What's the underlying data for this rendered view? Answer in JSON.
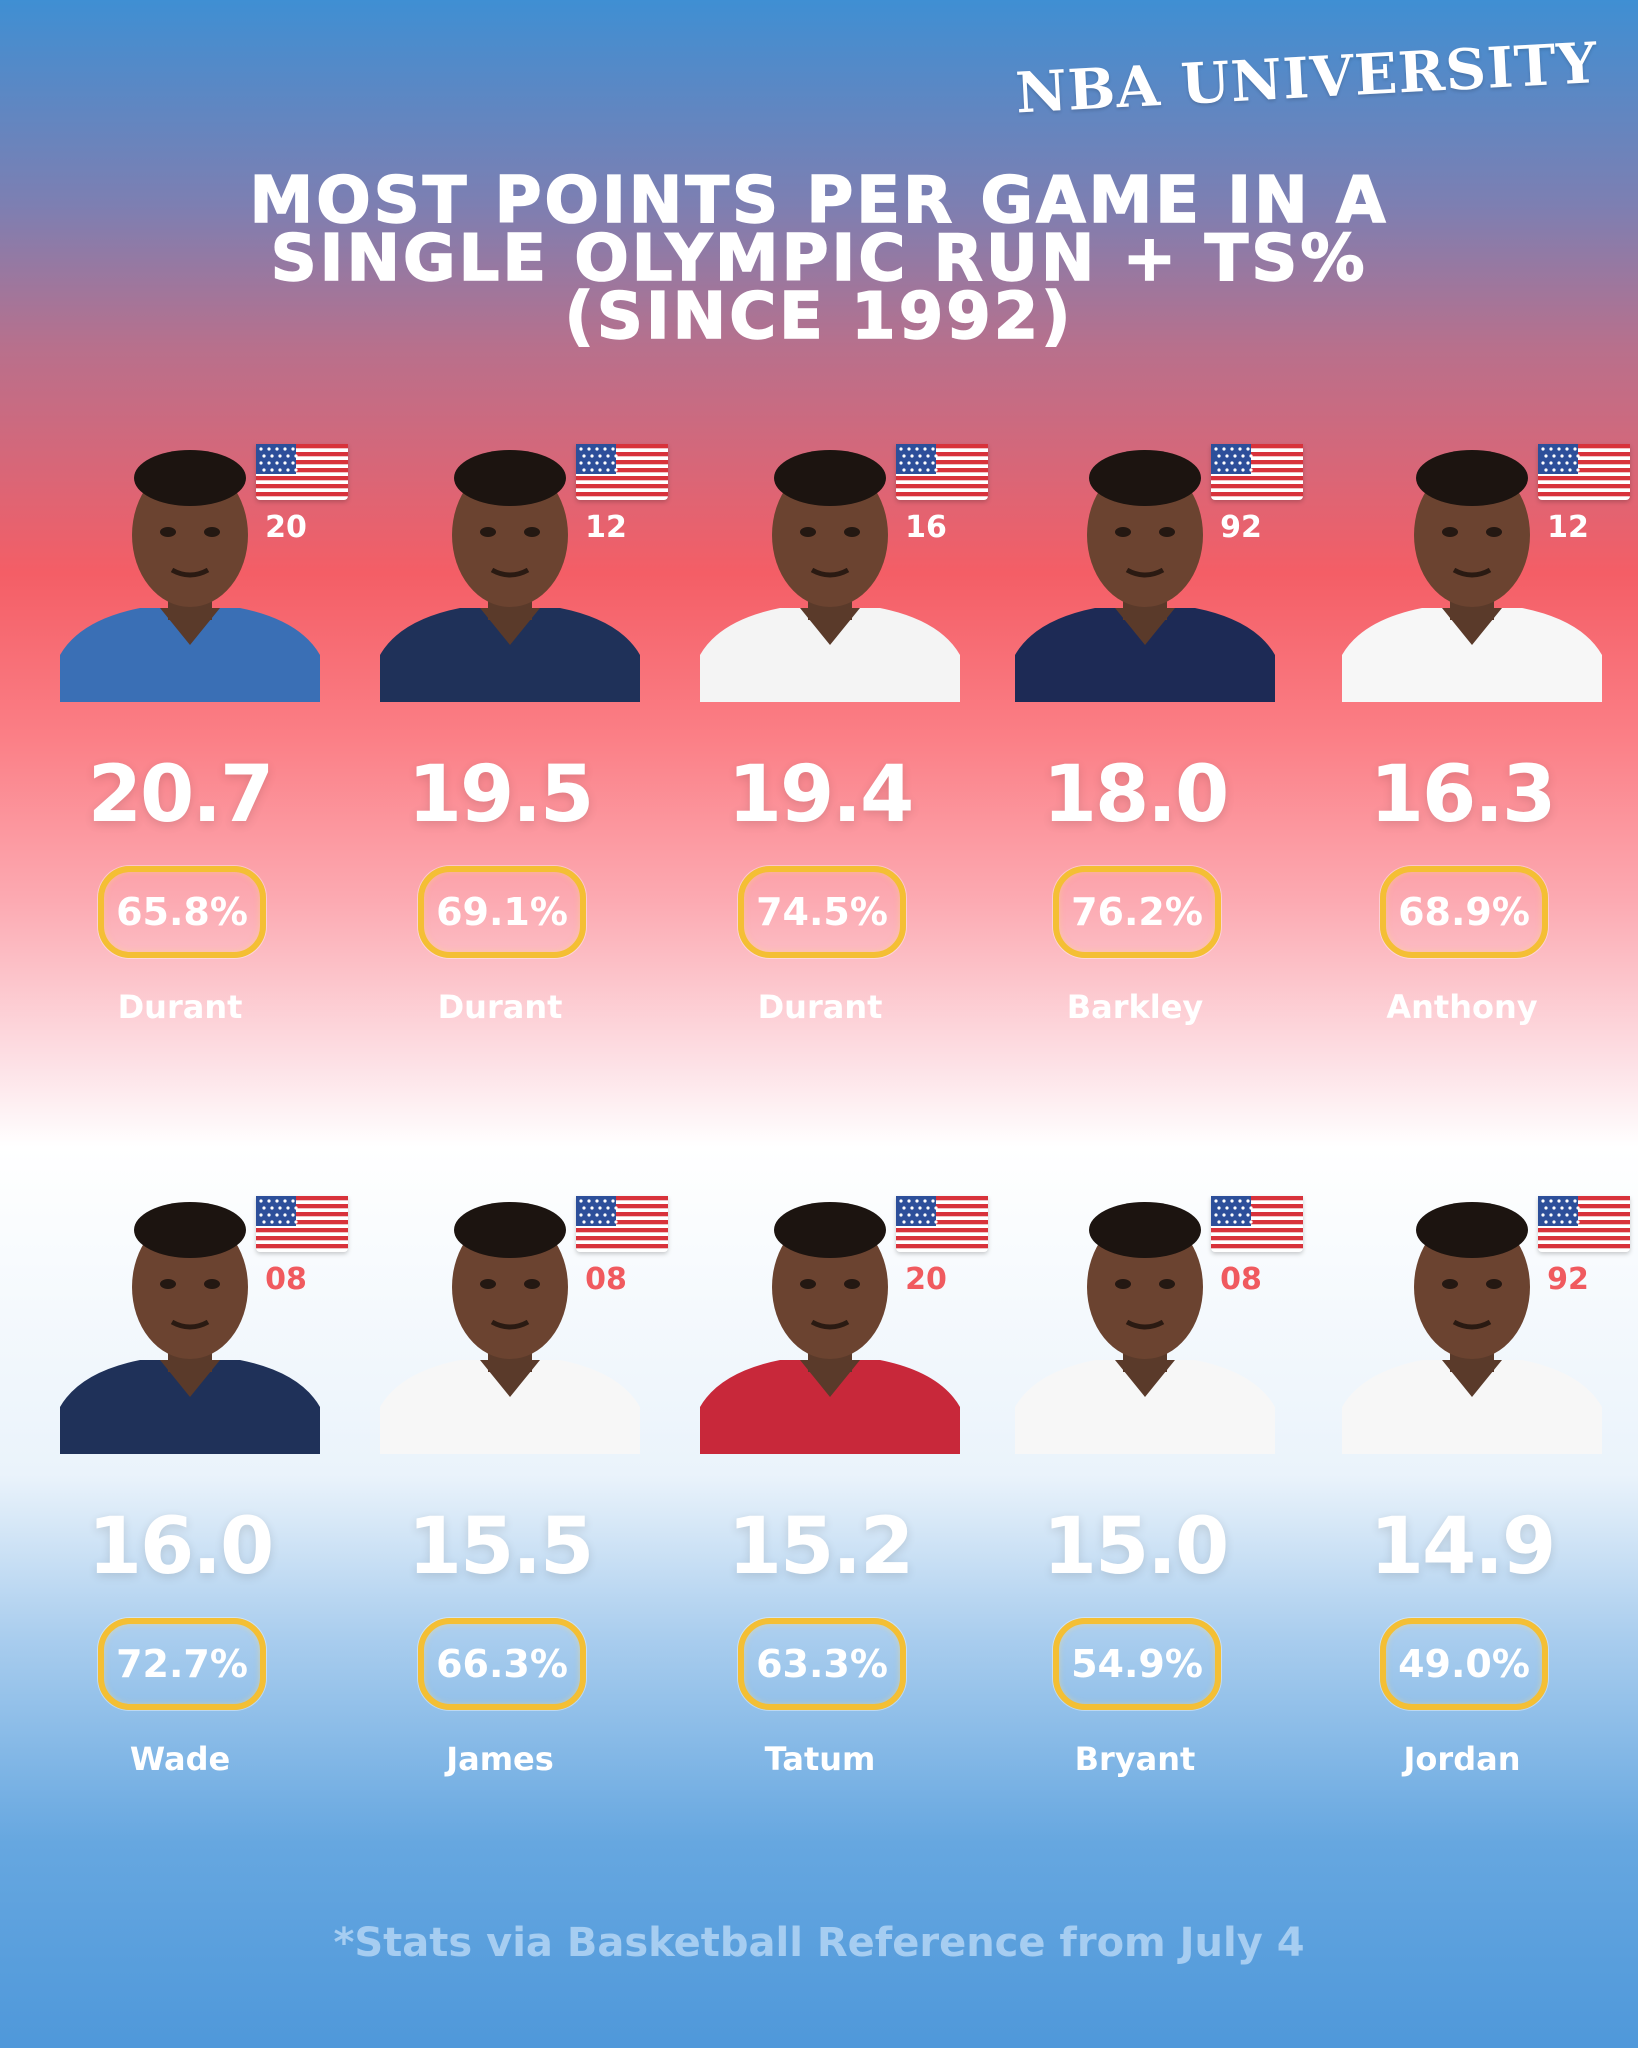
{
  "brand": "NBA UNIVERSITY",
  "title": {
    "line1": "MOST POINTS PER GAME IN A",
    "line2": "SINGLE OLYMPIC RUN + TS%",
    "line3": "(SINCE 1992)"
  },
  "footnote": "*Stats via Basketball Reference from July 4",
  "colors": {
    "ts_border": "#f4bf34",
    "year_top_row": "#ffffff",
    "year_bottom_row": "#f05a5f"
  },
  "players": [
    {
      "name": "Durant",
      "year": "20",
      "ppg": "20.7",
      "ts": "65.8%",
      "icon": "usa-flag-icon",
      "jersey": "#3a6fb5"
    },
    {
      "name": "Durant",
      "year": "12",
      "ppg": "19.5",
      "ts": "69.1%",
      "icon": "usa-flag-icon",
      "jersey": "#1f3159"
    },
    {
      "name": "Durant",
      "year": "16",
      "ppg": "19.4",
      "ts": "74.5%",
      "icon": "usa-flag-icon",
      "jersey": "#f4f4f4"
    },
    {
      "name": "Barkley",
      "year": "92",
      "ppg": "18.0",
      "ts": "76.2%",
      "icon": "usa-flag-icon",
      "jersey": "#1d2a55"
    },
    {
      "name": "Anthony",
      "year": "12",
      "ppg": "16.3",
      "ts": "68.9%",
      "icon": "usa-flag-icon",
      "jersey": "#f7f7f7"
    },
    {
      "name": "Wade",
      "year": "08",
      "ppg": "16.0",
      "ts": "72.7%",
      "icon": "usa-flag-icon",
      "jersey": "#1f3159"
    },
    {
      "name": "James",
      "year": "08",
      "ppg": "15.5",
      "ts": "66.3%",
      "icon": "usa-flag-icon",
      "jersey": "#f7f7f7"
    },
    {
      "name": "Tatum",
      "year": "20",
      "ppg": "15.2",
      "ts": "63.3%",
      "icon": "usa-flag-icon",
      "jersey": "#c8283a"
    },
    {
      "name": "Bryant",
      "year": "08",
      "ppg": "15.0",
      "ts": "54.9%",
      "icon": "usa-flag-icon",
      "jersey": "#f7f7f7"
    },
    {
      "name": "Jordan",
      "year": "92",
      "ppg": "14.9",
      "ts": "49.0%",
      "icon": "usa-flag-icon",
      "jersey": "#f7f7f7"
    }
  ]
}
